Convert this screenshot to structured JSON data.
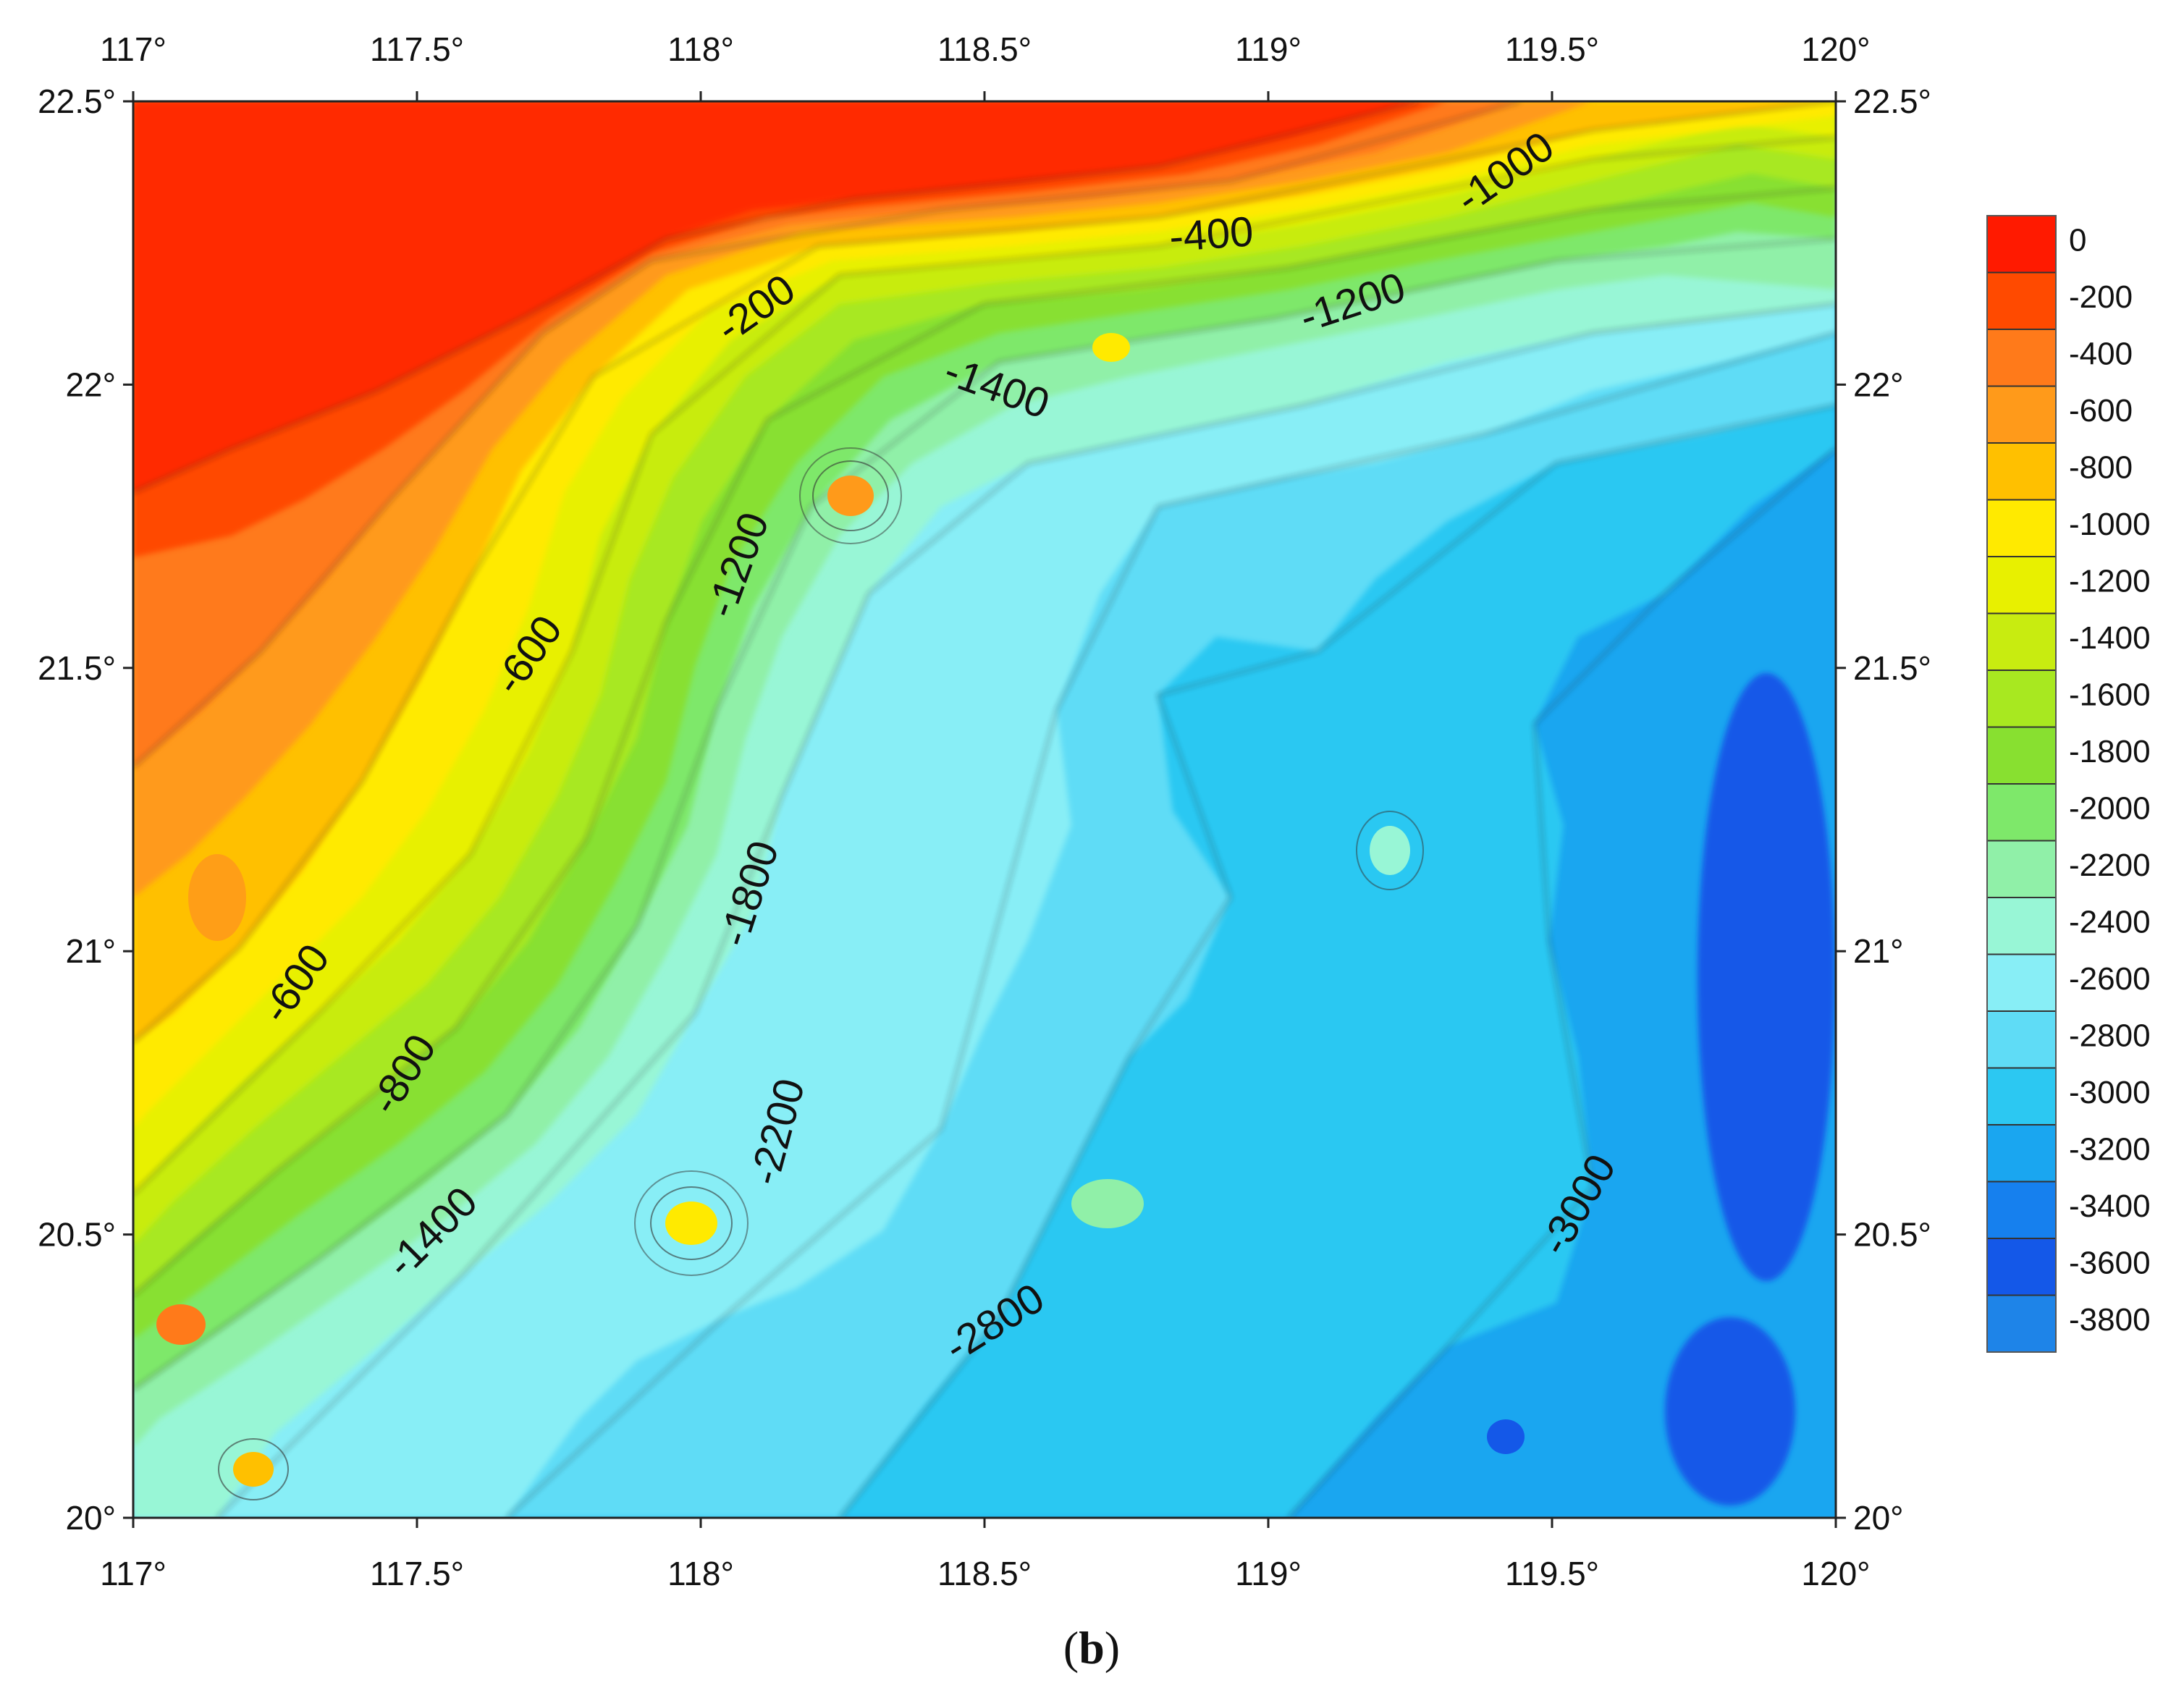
{
  "figure": {
    "caption_open": "(",
    "caption_letter": "b",
    "caption_close": ")"
  },
  "map": {
    "lon_range": [
      117,
      120
    ],
    "lat_range": [
      20,
      22.5
    ],
    "x_ticks": [
      "117°",
      "117.5°",
      "118°",
      "118.5°",
      "119°",
      "119.5°",
      "120°"
    ],
    "y_ticks": [
      "22.5°",
      "22°",
      "21.5°",
      "21°",
      "20.5°",
      "20°"
    ],
    "colorbar": {
      "labels": [
        "0",
        "-200",
        "-400",
        "-600",
        "-800",
        "-1000",
        "-1200",
        "-1400",
        "-1600",
        "-1800",
        "-2000",
        "-2200",
        "-2400",
        "-2600",
        "-2800",
        "-3000",
        "-3200",
        "-3400",
        "-3600",
        "-3800"
      ],
      "colors": [
        "#ff1a00",
        "#ff4a00",
        "#ff7a1a",
        "#ff9a1a",
        "#ffc000",
        "#ffea00",
        "#e8f000",
        "#c8ec10",
        "#a8e820",
        "#88e030",
        "#7ee86a",
        "#90f0a8",
        "#98f6d6",
        "#88eef6",
        "#5fdcf6",
        "#2cc8f2",
        "#1aa6f0",
        "#1680ee",
        "#1458e8",
        "#1e84e8"
      ]
    },
    "contour_labels": [
      {
        "text": "-200",
        "lon": 118.1,
        "lat": 22.13,
        "rot": -35
      },
      {
        "text": "-400",
        "lon": 118.9,
        "lat": 22.26,
        "rot": -4
      },
      {
        "text": "-1000",
        "lon": 119.42,
        "lat": 22.37,
        "rot": -35
      },
      {
        "text": "-1200",
        "lon": 119.15,
        "lat": 22.14,
        "rot": -18
      },
      {
        "text": "-1400",
        "lon": 118.52,
        "lat": 21.99,
        "rot": 20
      },
      {
        "text": "-1200",
        "lon": 118.07,
        "lat": 21.68,
        "rot": -70
      },
      {
        "text": "-600",
        "lon": 117.7,
        "lat": 21.52,
        "rot": -55
      },
      {
        "text": "-1800",
        "lon": 118.09,
        "lat": 21.1,
        "rot": -72
      },
      {
        "text": "-600",
        "lon": 117.29,
        "lat": 20.94,
        "rot": -55
      },
      {
        "text": "-800",
        "lon": 117.48,
        "lat": 20.78,
        "rot": -58
      },
      {
        "text": "-2200",
        "lon": 118.14,
        "lat": 20.68,
        "rot": -75
      },
      {
        "text": "-1400",
        "lon": 117.53,
        "lat": 20.5,
        "rot": -45
      },
      {
        "text": "-2800",
        "lon": 118.52,
        "lat": 20.34,
        "rot": -32
      },
      {
        "text": "-3000",
        "lon": 119.55,
        "lat": 20.55,
        "rot": -60
      }
    ]
  }
}
